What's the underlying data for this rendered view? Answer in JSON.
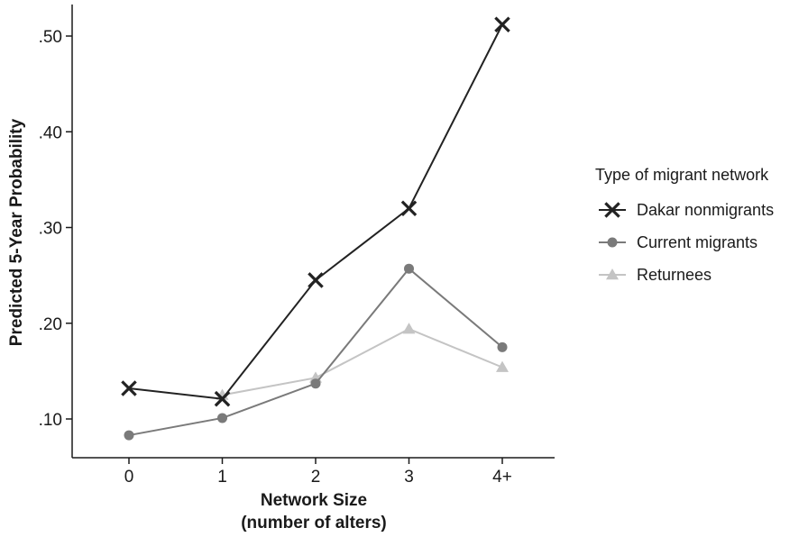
{
  "chart_data": {
    "type": "line",
    "title": "",
    "xlabel": [
      "Network Size",
      "(number of alters)"
    ],
    "ylabel": "Predicted 5-Year Probability",
    "categories": [
      "0",
      "1",
      "2",
      "3",
      "4+"
    ],
    "y_ticks": [
      0.1,
      0.2,
      0.3,
      0.4,
      0.5
    ],
    "y_tick_labels": [
      ".10",
      ".20",
      ".30",
      ".40",
      ".50"
    ],
    "ylim": [
      0.06,
      0.535
    ],
    "grid": false,
    "legend": {
      "title": "Type of migrant network",
      "placement": "right"
    },
    "series": [
      {
        "name": "Returnees",
        "marker": "triangle",
        "color": "#c4c4c4",
        "values": [
          null,
          0.125,
          0.143,
          0.194,
          0.154
        ]
      },
      {
        "name": "Current migrants",
        "marker": "circle",
        "color": "#7a7a7a",
        "values": [
          0.083,
          0.101,
          0.137,
          0.257,
          0.175
        ]
      },
      {
        "name": "Dakar nonmigrants",
        "marker": "x",
        "color": "#222222",
        "values": [
          0.132,
          0.121,
          0.245,
          0.32,
          0.512
        ]
      }
    ],
    "legend_order": [
      "Dakar nonmigrants",
      "Current migrants",
      "Returnees"
    ]
  }
}
